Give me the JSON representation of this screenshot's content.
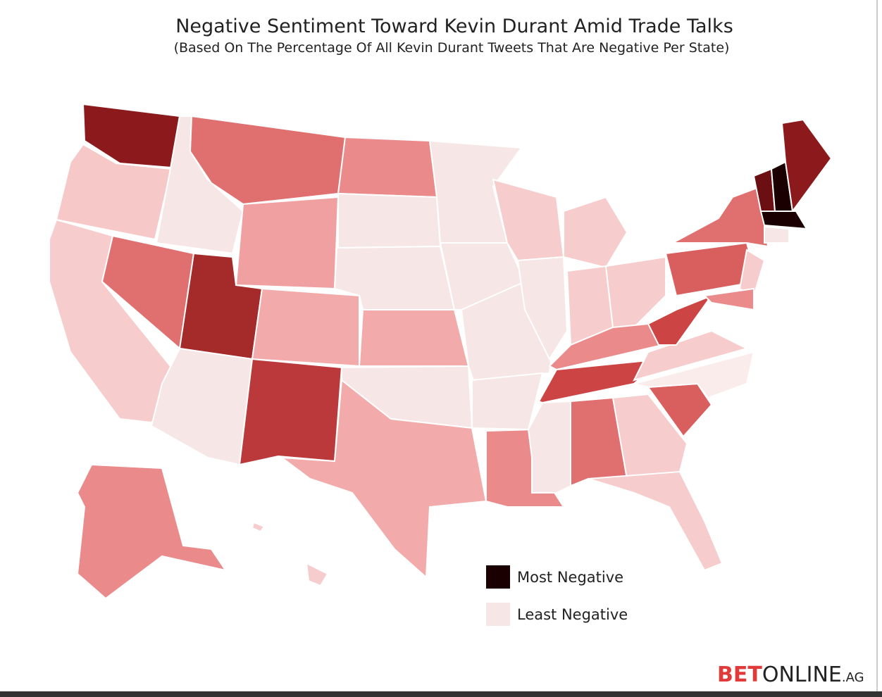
{
  "header": {
    "title": "Negative Sentiment Toward Kevin Durant Amid Trade Talks",
    "subtitle": "(Based On The Percentage Of All Kevin Durant Tweets That Are Negative Per State)"
  },
  "map": {
    "region_colors": [
      "#8c1a1d",
      "#f6c8c8",
      "#f6cccc",
      "#f7e6e6",
      "#e07070",
      "#a52a2a",
      "#f7e6e6",
      "#e07070",
      "#f0a0a0",
      "#f2aaaa",
      "#bb393b",
      "#ea8a8a",
      "#f7e6e6",
      "#f7e6e6",
      "#f2aaaa",
      "#f7e6e6",
      "#f2aaaa",
      "#f7e6e6",
      "#f7e6e6",
      "#f7e6e6",
      "#f7e6e6",
      "#ea8a8a",
      "#f6cccc",
      "#f7e6e6",
      "#f6cccc",
      "#f6cccc",
      "#f6cccc",
      "#ea8a8a",
      "#cc4444",
      "#f7e6e6",
      "#e07070",
      "#f6cccc",
      "#f6cccc",
      "#d95f5f",
      "#fbecec",
      "#f6cccc",
      "#cc4444",
      "#d95f5f",
      "#e07070",
      "#f6cccc",
      "#ea8a8a",
      "#6b0f12",
      "#1a0000",
      "#8c1a1d",
      "#1a0000",
      "#f7e6e6",
      "#ea8a8a",
      "#f6cccc",
      "#f6cccc"
    ]
  },
  "legend": [
    {
      "label": "Most Negative",
      "color": "#1a0000"
    },
    {
      "label": "Least Negative",
      "color": "#f7e6e6"
    }
  ],
  "brand": {
    "bet": "BET",
    "online": "ONLINE",
    "suffix": ".AG"
  }
}
